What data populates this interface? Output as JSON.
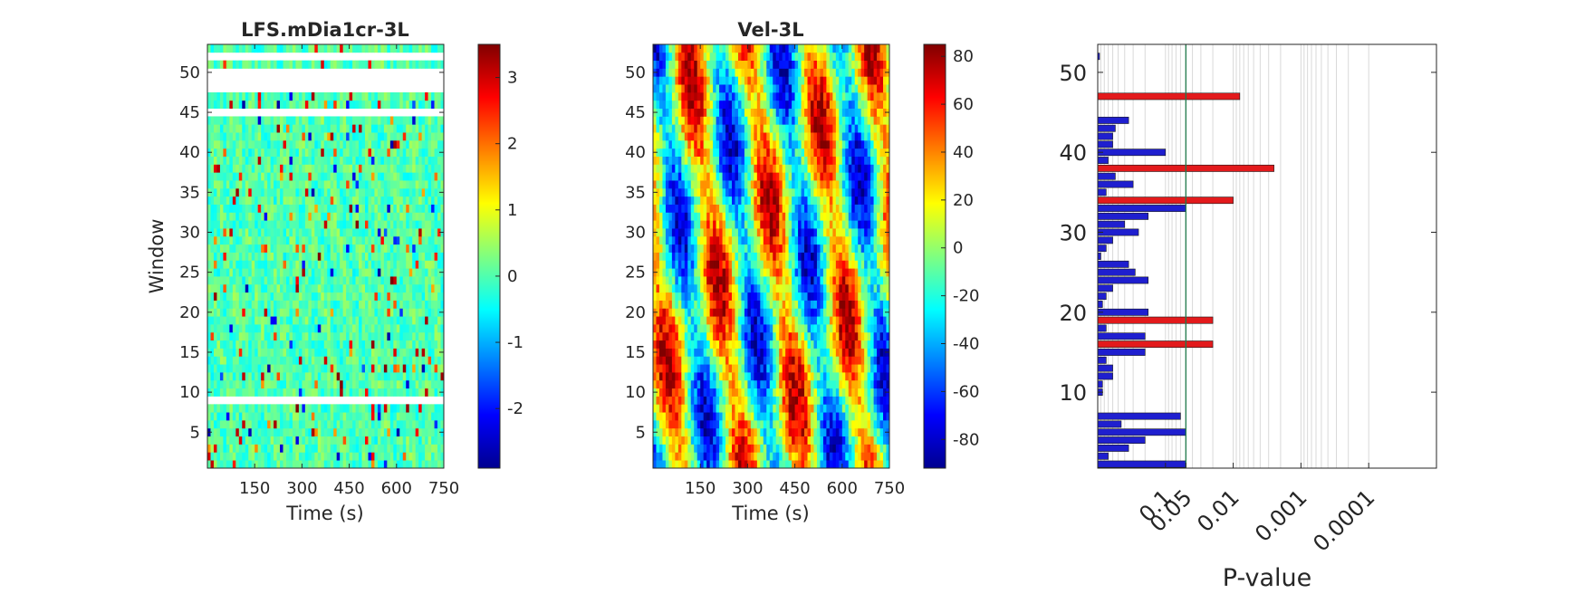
{
  "chart_data": [
    {
      "type": "heatmap",
      "title": "LFS.mDia1cr-3L",
      "xlabel": "Time (s)",
      "ylabel": "Window",
      "x_ticks": [
        150,
        300,
        450,
        600,
        750
      ],
      "y_ticks": [
        5,
        10,
        15,
        20,
        25,
        30,
        35,
        40,
        45,
        50
      ],
      "xlim": [
        0,
        750
      ],
      "ylim": [
        0.5,
        53.5
      ],
      "colormap": "jet",
      "clim": [
        -2.9,
        3.5
      ],
      "colorbar_ticks": [
        -2,
        -1,
        0,
        1,
        2,
        3
      ],
      "missing_windows": [
        9,
        45,
        48,
        49,
        50,
        52
      ],
      "description": "window x time grid of values, mostly near 0 with scattered red streaks up to ~3.5"
    },
    {
      "type": "heatmap",
      "title": "Vel-3L",
      "xlabel": "Time (s)",
      "x_ticks": [
        150,
        300,
        450,
        600,
        750
      ],
      "y_ticks": [
        5,
        10,
        15,
        20,
        25,
        30,
        35,
        40,
        45,
        50
      ],
      "xlim": [
        0,
        750
      ],
      "ylim": [
        0.5,
        53.5
      ],
      "colormap": "jet",
      "clim": [
        -92,
        85
      ],
      "colorbar_ticks": [
        -80,
        -60,
        -40,
        -20,
        0,
        20,
        40,
        60,
        80
      ],
      "description": "window x time grid of velocity values oscillating between about -90 and 85"
    },
    {
      "type": "bar",
      "orientation": "horizontal",
      "xlabel": "P-value",
      "x_scale": "log-reciprocal",
      "x_ticks": [
        0.1,
        0.05,
        0.01,
        0.001,
        0.0001
      ],
      "x_tick_labels": [
        "0.1",
        "0.05",
        "0.01",
        "0.001",
        "0.0001"
      ],
      "x_range_p": [
        1,
        1e-05
      ],
      "significance_line_p": 0.05,
      "y_ticks": [
        10,
        20,
        30,
        40,
        50
      ],
      "ylim": [
        0.5,
        53.5
      ],
      "highlight_colors": {
        "significant": "#e31a1c",
        "nonsignificant": "#1f1fcf"
      },
      "bars": [
        {
          "window": 1,
          "p": 0.05,
          "significant": false
        },
        {
          "window": 2,
          "p": 0.7,
          "significant": false
        },
        {
          "window": 3,
          "p": 0.35,
          "significant": false
        },
        {
          "window": 4,
          "p": 0.2,
          "significant": false
        },
        {
          "window": 5,
          "p": 0.05,
          "significant": false
        },
        {
          "window": 6,
          "p": 0.45,
          "significant": false
        },
        {
          "window": 7,
          "p": 0.06,
          "significant": false
        },
        {
          "window": 8,
          "p": null,
          "significant": false
        },
        {
          "window": 9,
          "p": null,
          "significant": false
        },
        {
          "window": 10,
          "p": 0.85,
          "significant": false
        },
        {
          "window": 11,
          "p": 0.85,
          "significant": false
        },
        {
          "window": 12,
          "p": 0.6,
          "significant": false
        },
        {
          "window": 13,
          "p": 0.6,
          "significant": false
        },
        {
          "window": 14,
          "p": 0.75,
          "significant": false
        },
        {
          "window": 15,
          "p": 0.2,
          "significant": false
        },
        {
          "window": 16,
          "p": 0.02,
          "significant": true
        },
        {
          "window": 17,
          "p": 0.2,
          "significant": false
        },
        {
          "window": 18,
          "p": 0.75,
          "significant": false
        },
        {
          "window": 19,
          "p": 0.02,
          "significant": true
        },
        {
          "window": 20,
          "p": 0.18,
          "significant": false
        },
        {
          "window": 21,
          "p": 0.85,
          "significant": false
        },
        {
          "window": 22,
          "p": 0.75,
          "significant": false
        },
        {
          "window": 23,
          "p": 0.6,
          "significant": false
        },
        {
          "window": 24,
          "p": 0.18,
          "significant": false
        },
        {
          "window": 25,
          "p": 0.28,
          "significant": false
        },
        {
          "window": 26,
          "p": 0.35,
          "significant": false
        },
        {
          "window": 27,
          "p": 0.9,
          "significant": false
        },
        {
          "window": 28,
          "p": 0.75,
          "significant": false
        },
        {
          "window": 29,
          "p": 0.6,
          "significant": false
        },
        {
          "window": 30,
          "p": 0.25,
          "significant": false
        },
        {
          "window": 31,
          "p": 0.4,
          "significant": false
        },
        {
          "window": 32,
          "p": 0.18,
          "significant": false
        },
        {
          "window": 33,
          "p": 0.05,
          "significant": false
        },
        {
          "window": 34,
          "p": 0.01,
          "significant": true
        },
        {
          "window": 35,
          "p": 0.75,
          "significant": false
        },
        {
          "window": 36,
          "p": 0.3,
          "significant": false
        },
        {
          "window": 37,
          "p": 0.55,
          "significant": false
        },
        {
          "window": 38,
          "p": 0.0025,
          "significant": true
        },
        {
          "window": 39,
          "p": 0.7,
          "significant": false
        },
        {
          "window": 40,
          "p": 0.1,
          "significant": false
        },
        {
          "window": 41,
          "p": 0.6,
          "significant": false
        },
        {
          "window": 42,
          "p": 0.6,
          "significant": false
        },
        {
          "window": 43,
          "p": 0.55,
          "significant": false
        },
        {
          "window": 44,
          "p": 0.35,
          "significant": false
        },
        {
          "window": 45,
          "p": null,
          "significant": false
        },
        {
          "window": 46,
          "p": null,
          "significant": false
        },
        {
          "window": 47,
          "p": 0.008,
          "significant": true
        },
        {
          "window": 48,
          "p": null,
          "significant": false
        },
        {
          "window": 49,
          "p": null,
          "significant": false
        },
        {
          "window": 50,
          "p": null,
          "significant": false
        },
        {
          "window": 51,
          "p": null,
          "significant": false
        },
        {
          "window": 52,
          "p": 0.95,
          "significant": false
        },
        {
          "window": 53,
          "p": null,
          "significant": false
        }
      ]
    }
  ]
}
